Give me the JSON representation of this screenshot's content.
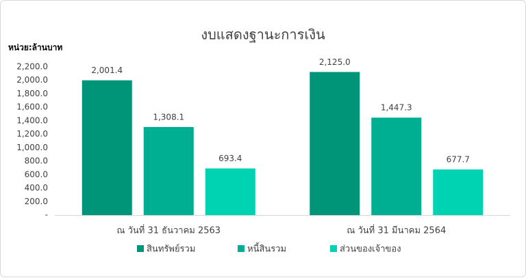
{
  "chart_data": {
    "type": "bar",
    "title": "งบแสดงฐานะการเงิน",
    "unit_label": "หน่วย:ล้านบาท",
    "categories": [
      "ณ วันที่ 31 ธันวาคม 2563",
      "ณ วันที่ 31 มีนาคม 2564"
    ],
    "series": [
      {
        "name": "สินทรัพย์รวม",
        "color": "#009479",
        "values": [
          2001.4,
          2125.0
        ],
        "value_labels": [
          "2,001.4",
          "2,125.0"
        ]
      },
      {
        "name": "หนี้สินรวม",
        "color": "#00ae92",
        "values": [
          1308.1,
          1447.3
        ],
        "value_labels": [
          "1,308.1",
          "1,447.3"
        ]
      },
      {
        "name": "ส่วนของเจ้าของ",
        "color": "#00d3b2",
        "values": [
          693.4,
          677.7
        ],
        "value_labels": [
          "693.4",
          "677.7"
        ]
      }
    ],
    "ylim": [
      0,
      2200
    ],
    "yticks": [
      {
        "value": 0,
        "label": "-"
      },
      {
        "value": 200,
        "label": "200.0"
      },
      {
        "value": 400,
        "label": "400.0"
      },
      {
        "value": 600,
        "label": "600.0"
      },
      {
        "value": 800,
        "label": "800.0"
      },
      {
        "value": 1000,
        "label": "1,000.0"
      },
      {
        "value": 1200,
        "label": "1,200.0"
      },
      {
        "value": 1400,
        "label": "1,400.0"
      },
      {
        "value": 1600,
        "label": "1,600.0"
      },
      {
        "value": 1800,
        "label": "1,800.0"
      },
      {
        "value": 2000,
        "label": "2,000.0"
      },
      {
        "value": 2200,
        "label": "2,200.0"
      }
    ],
    "grid": false
  }
}
